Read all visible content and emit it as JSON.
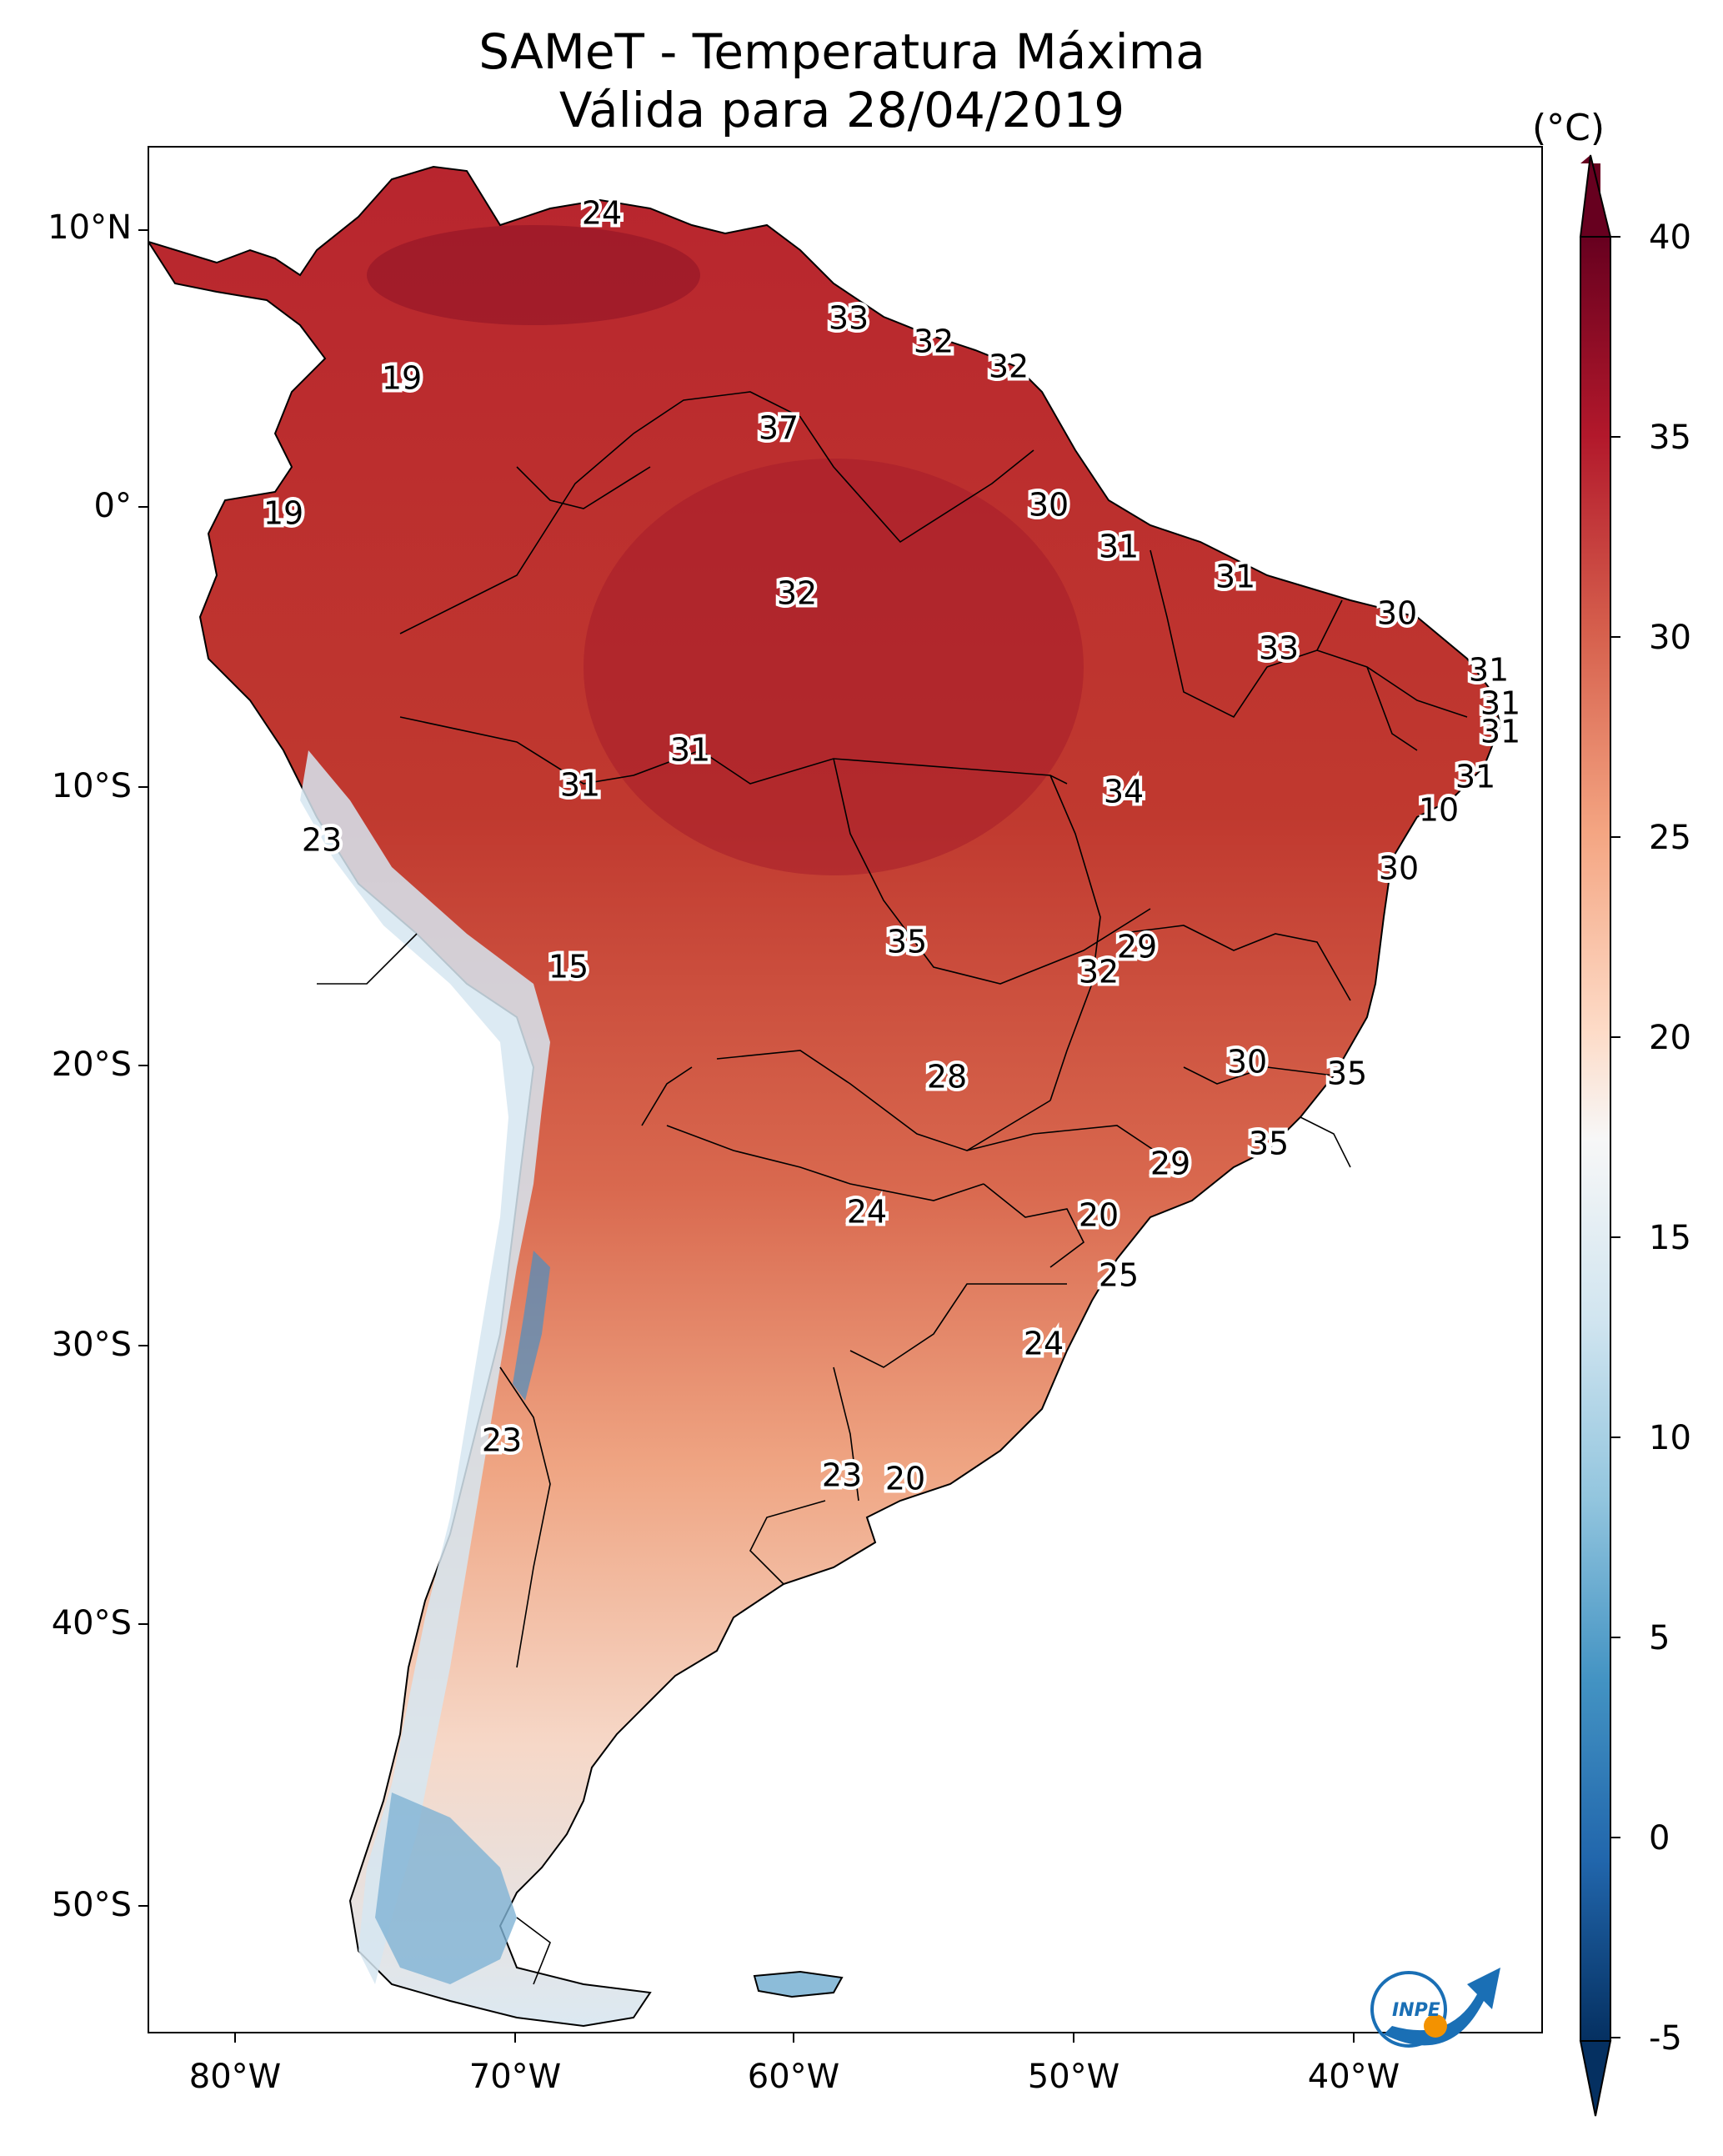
{
  "title": {
    "line1": "SAMeT - Temperatura Máxima",
    "line2": "Válida para 28/04/2019"
  },
  "colorbar": {
    "unit": "(°C)",
    "ticks": [
      "40",
      "35",
      "30",
      "25",
      "20",
      "15",
      "10",
      "5",
      "0",
      "-5"
    ],
    "range": [
      -5,
      40
    ],
    "colors": [
      "#67001f",
      "#b2182b",
      "#d6604d",
      "#f4a582",
      "#fddbc7",
      "#f7f7f7",
      "#d1e5f0",
      "#92c5de",
      "#4393c3",
      "#2166ac",
      "#053061"
    ]
  },
  "axes": {
    "lat_labels": [
      "10°N",
      "0°",
      "10°S",
      "20°S",
      "30°S",
      "40°S",
      "50°S"
    ],
    "lon_labels": [
      "80°W",
      "70°W",
      "60°W",
      "50°W",
      "40°W"
    ]
  },
  "station_values": [
    "24",
    "33",
    "32",
    "32",
    "19",
    "37",
    "19",
    "30",
    "31",
    "32",
    "31",
    "30",
    "33",
    "31",
    "31",
    "31",
    "31",
    "10",
    "31",
    "34",
    "31",
    "23",
    "30",
    "15",
    "35",
    "29",
    "32",
    "30",
    "28",
    "35",
    "35",
    "29",
    "24",
    "20",
    "25",
    "24",
    "23",
    "23",
    "20"
  ],
  "logo": {
    "text": "INPE"
  }
}
